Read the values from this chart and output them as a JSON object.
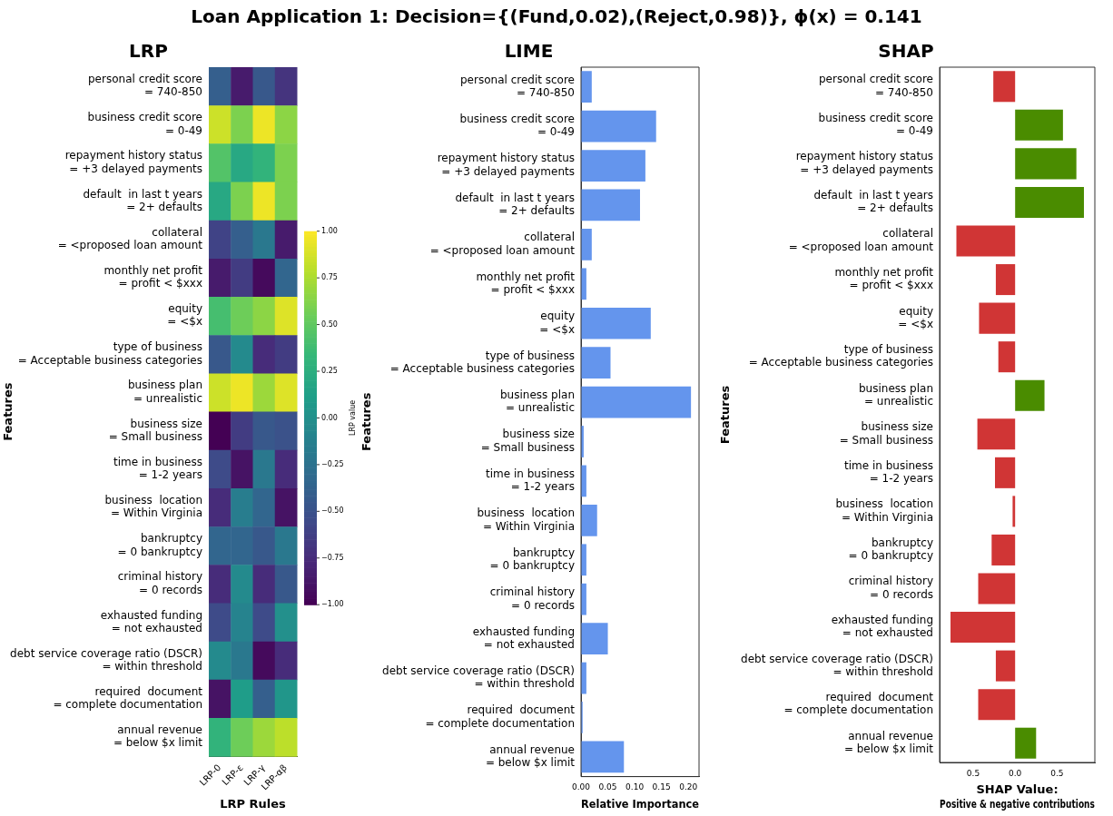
{
  "chart_data": [
    {
      "type": "heatmap",
      "title": "LRP",
      "xlabel": "LRP Rules",
      "ylabel": "Features",
      "annotations": [
        "Loan Application 1:   Decision={(Fund,0.02),(Reject,0.98)}, ϕ(x) = 0.141"
      ],
      "categories": [
        "LRP-0",
        "LRP-ε",
        "LRP-γ",
        "LRP-αβ"
      ],
      "y_categories": [
        "personal credit score\n= 740-850",
        "business credit score\n= 0-49",
        "repayment history status\n= +3 delayed payments",
        "default  in last t years\n= 2+ defaults",
        "collateral\n= <proposed loan amount",
        "monthly net profit\n= profit < $xxx",
        "equity\n= <$x",
        "type of business\n= Acceptable business categories",
        "business plan\n= unrealistic",
        "business size\n= Small business",
        "time in business\n= 1-2 years",
        "business  location\n= Within Virginia",
        "bankruptcy\n= 0 bankruptcy",
        "criminal history\n= 0 records",
        "exhausted funding\n= not exhausted",
        "debt service coverage ratio (DSCR)\n= within threshold",
        "required  document\n= complete documentation",
        "annual revenue\n= below $x limit"
      ],
      "cells": [
        [
          -0.4,
          -0.85,
          -0.45,
          -0.7
        ],
        [
          0.85,
          0.6,
          0.95,
          0.65
        ],
        [
          0.45,
          0.2,
          0.3,
          0.6
        ],
        [
          0.2,
          0.6,
          0.95,
          0.6
        ],
        [
          -0.6,
          -0.4,
          -0.2,
          -0.85
        ],
        [
          -0.85,
          -0.65,
          -0.95,
          -0.35
        ],
        [
          0.4,
          0.55,
          0.65,
          0.9
        ],
        [
          -0.45,
          -0.05,
          -0.75,
          -0.65
        ],
        [
          0.85,
          0.95,
          0.7,
          0.9
        ],
        [
          -1.0,
          -0.65,
          -0.45,
          -0.5
        ],
        [
          -0.55,
          -0.9,
          -0.2,
          -0.75
        ],
        [
          -0.75,
          -0.15,
          -0.35,
          -0.9
        ],
        [
          -0.35,
          -0.35,
          -0.45,
          -0.2
        ],
        [
          -0.75,
          -0.05,
          -0.75,
          -0.45
        ],
        [
          -0.55,
          -0.1,
          -0.55,
          0.0
        ],
        [
          -0.05,
          -0.2,
          -0.95,
          -0.75
        ],
        [
          -0.9,
          0.1,
          -0.4,
          0.05
        ],
        [
          0.3,
          0.55,
          0.7,
          0.8
        ]
      ],
      "clim": [
        -1,
        1
      ],
      "clabel": "LRP value",
      "cticks": [
        {
          "value": -1,
          "label": "−1.00"
        },
        {
          "value": -0.75,
          "label": "−0.75"
        },
        {
          "value": -0.5,
          "label": "−0.50"
        },
        {
          "value": -0.25,
          "label": "−0.25"
        },
        {
          "value": 0,
          "label": "0.00"
        },
        {
          "value": 0.25,
          "label": "0.25"
        },
        {
          "value": 0.5,
          "label": "0.50"
        },
        {
          "value": 0.75,
          "label": "0.75"
        },
        {
          "value": 1,
          "label": "1.00"
        }
      ]
    },
    {
      "type": "bar",
      "orientation": "horizontal",
      "title": "LIME",
      "xlabel": "Relative Importance",
      "ylabel": "Features",
      "color": "#6495ed",
      "categories": [
        "personal credit score\n= 740-850",
        "business credit score\n= 0-49",
        "repayment history status\n= +3 delayed payments",
        "default  in last t years\n= 2+ defaults",
        "collateral\n= <proposed loan amount",
        "monthly net profit\n= profit < $xxx",
        "equity\n= <$x",
        "type of business\n= Acceptable business categories",
        "business plan\n= unrealistic",
        "business size\n= Small business",
        "time in business\n= 1-2 years",
        "business  location\n= Within Virginia",
        "bankruptcy\n= 0 bankruptcy",
        "criminal history\n= 0 records",
        "exhausted funding\n= not exhausted",
        "debt service coverage ratio (DSCR)\n= within threshold",
        "required  document\n= complete documentation",
        "annual revenue\n= below $x limit"
      ],
      "values": [
        0.02,
        0.14,
        0.12,
        0.11,
        0.02,
        0.01,
        0.13,
        0.055,
        0.205,
        0.005,
        0.01,
        0.03,
        0.01,
        0.01,
        0.05,
        0.01,
        0.003,
        0.08
      ],
      "xlim": [
        0,
        0.22
      ],
      "xticks": [
        {
          "value": 0,
          "label": "0.00"
        },
        {
          "value": 0.05,
          "label": "0.05"
        },
        {
          "value": 0.1,
          "label": "0.10"
        },
        {
          "value": 0.15,
          "label": "0.15"
        },
        {
          "value": 0.2,
          "label": "0.20"
        }
      ]
    },
    {
      "type": "bar",
      "orientation": "horizontal",
      "title": "SHAP",
      "xlabel": "SHAP Value:\nPositive & negative contributions",
      "ylabel": "Features",
      "categories": [
        "personal credit score\n= 740-850",
        "business credit score\n= 0-49",
        "repayment history status\n= +3 delayed payments",
        "default  in last t years\n= 2+ defaults",
        "collateral\n= <proposed loan amount",
        "monthly net profit\n= profit < $xxx",
        "equity\n= <$x",
        "type of business\n= Acceptable business categories",
        "business plan\n= unrealistic",
        "business size\n= Small business",
        "time in business\n= 1-2 years",
        "business  location\n= Within Virginia",
        "bankruptcy\n= 0 bankruptcy",
        "criminal history\n= 0 records",
        "exhausted funding\n= not exhausted",
        "debt service coverage ratio (DSCR)\n= within threshold",
        "required  document\n= complete documentation",
        "annual revenue\n= below $x limit"
      ],
      "values": [
        -0.26,
        0.57,
        0.73,
        0.82,
        -0.7,
        -0.23,
        -0.43,
        -0.2,
        0.35,
        -0.45,
        -0.24,
        -0.03,
        -0.28,
        -0.44,
        -0.77,
        -0.23,
        -0.44,
        0.25
      ],
      "colors": [
        "#d03535",
        "#4a8c00",
        "#4a8c00",
        "#4a8c00",
        "#d03535",
        "#d03535",
        "#d03535",
        "#d03535",
        "#4a8c00",
        "#d03535",
        "#d03535",
        "#d03535",
        "#d03535",
        "#d03535",
        "#d03535",
        "#d03535",
        "#d03535",
        "#4a8c00"
      ],
      "xlim": [
        -0.9,
        0.95
      ],
      "xticks": [
        {
          "value": -0.5,
          "label": "0.5"
        },
        {
          "value": 0,
          "label": "0.0"
        },
        {
          "value": 0.5,
          "label": "0.5"
        }
      ]
    }
  ]
}
